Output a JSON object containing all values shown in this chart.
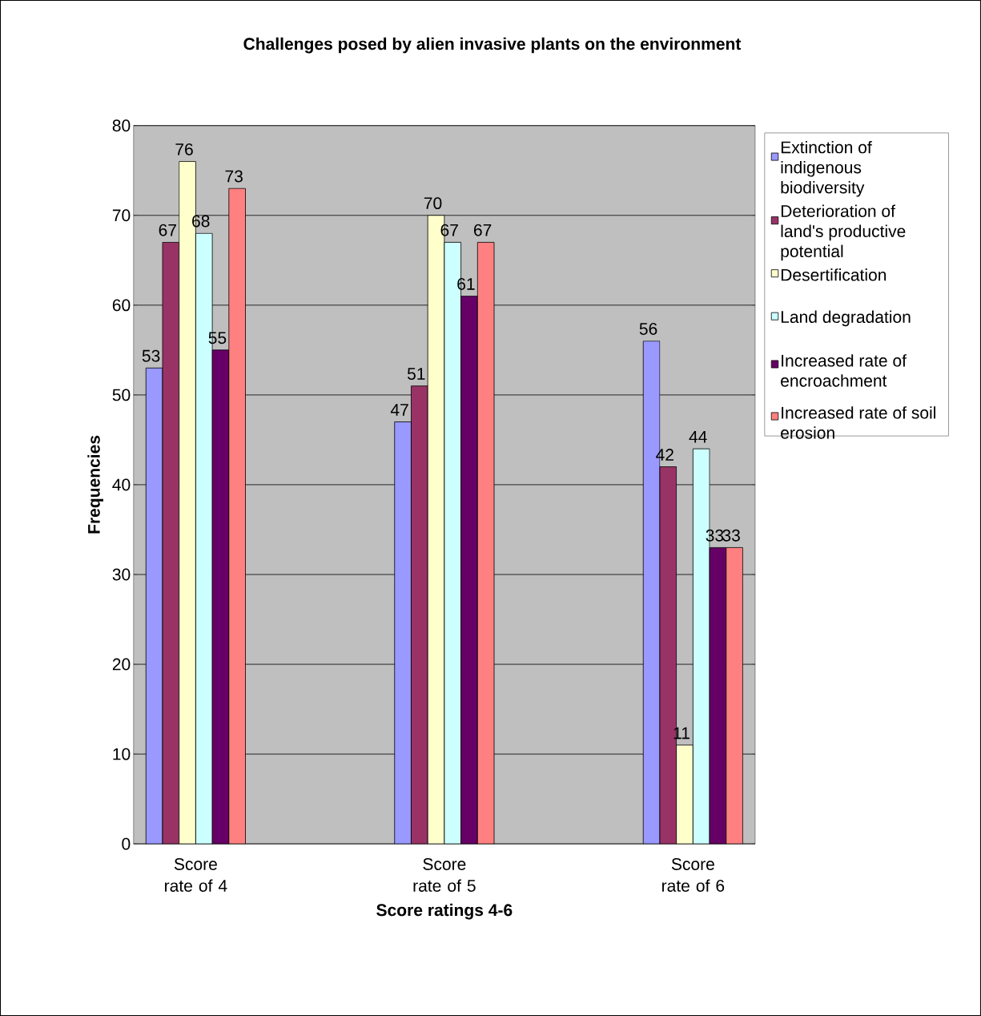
{
  "chart_data": {
    "type": "bar",
    "title": "Challenges posed by alien invasive plants on the environment",
    "xlabel": "Score ratings 4-6",
    "ylabel": "Frequencies",
    "categories": [
      "Score rate of 4",
      "Score rate of 5",
      "Score rate of 6"
    ],
    "series": [
      {
        "name": "Extinction of indigenous biodiversity",
        "color": "#9999ff",
        "values": [
          53,
          47,
          56
        ]
      },
      {
        "name": "Deterioration of land's productive potential",
        "color": "#993366",
        "values": [
          67,
          51,
          42
        ]
      },
      {
        "name": "Desertification",
        "color": "#ffffcc",
        "values": [
          76,
          70,
          11
        ]
      },
      {
        "name": "Land degradation",
        "color": "#ccffff",
        "values": [
          68,
          67,
          44
        ]
      },
      {
        "name": "Increased rate of encroachment",
        "color": "#660066",
        "values": [
          55,
          61,
          33
        ]
      },
      {
        "name": "Increased rate of soil erosion",
        "color": "#ff8080",
        "values": [
          73,
          67,
          33
        ]
      }
    ],
    "ylim": [
      0,
      80
    ],
    "yticks": [
      0,
      10,
      20,
      30,
      40,
      50,
      60,
      70,
      80
    ],
    "grid": "y",
    "legend": "right",
    "data_labels": true
  }
}
